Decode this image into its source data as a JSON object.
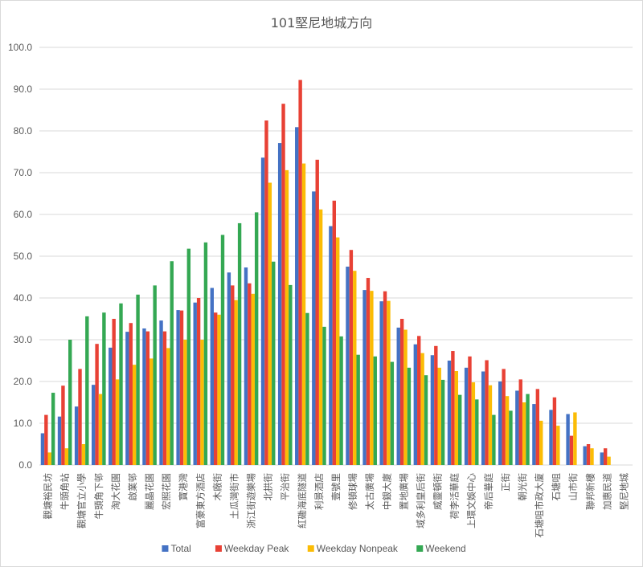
{
  "chart_data": {
    "type": "bar",
    "title": "101堅尼地城方向",
    "xlabel": "",
    "ylabel": "",
    "ylim": [
      0,
      100
    ],
    "ytick_step": 10,
    "grid": true,
    "legend_position": "bottom",
    "categories": [
      "觀塘裕民坊",
      "牛頭角站",
      "觀塘官立小學",
      "牛頭角下邨",
      "淘大花園",
      "啟業邨",
      "麗晶花園",
      "宏照花園",
      "寶港灣",
      "富豪東方酒店",
      "木廠街",
      "土瓜灣街市",
      "浙江街遊樂場",
      "北拱街",
      "平治街",
      "紅磡海底隧道",
      "利景酒店",
      "壹號里",
      "修頓球場",
      "太古廣場",
      "中銀大廈",
      "置地廣場",
      "域多利皇后街",
      "威靈頓街",
      "荷李活華庭",
      "上環文娛中心",
      "帝后華庭",
      "正街",
      "朝光街",
      "石塘咀市政大廈",
      "石塘咀",
      "山市街",
      "聯邦新樓",
      "加惠民道",
      "堅尼地城"
    ],
    "series": [
      {
        "name": "Total",
        "color": "#4472C4",
        "values": [
          7.6,
          11.6,
          14.0,
          19.2,
          28.1,
          31.9,
          32.7,
          34.6,
          37.1,
          38.9,
          42.4,
          46.1,
          47.3,
          73.6,
          77.1,
          80.9,
          65.5,
          57.2,
          47.5,
          41.9,
          39.2,
          32.9,
          28.9,
          26.3,
          25.0,
          23.3,
          22.4,
          20.0,
          17.8,
          14.6,
          13.2,
          12.2,
          4.5,
          3.0,
          0
        ]
      },
      {
        "name": "Weekday Peak",
        "color": "#E84135",
        "values": [
          12.0,
          19.0,
          23.0,
          29.0,
          35.0,
          34.0,
          32.0,
          32.0,
          37.0,
          40.0,
          36.5,
          43.0,
          43.5,
          82.5,
          86.5,
          92.2,
          73.1,
          63.3,
          51.5,
          44.8,
          41.6,
          35.0,
          30.9,
          28.5,
          27.3,
          26.0,
          25.1,
          23.0,
          20.5,
          18.2,
          16.2,
          7.0,
          5.0,
          4.0,
          0
        ]
      },
      {
        "name": "Weekday Nonpeak",
        "color": "#FBBC05",
        "values": [
          3.0,
          4.0,
          5.0,
          17.0,
          20.5,
          24.0,
          25.5,
          28.0,
          30.0,
          30.0,
          36.0,
          39.5,
          41.0,
          67.6,
          70.6,
          72.2,
          61.2,
          54.5,
          46.5,
          41.7,
          39.3,
          32.4,
          26.8,
          23.3,
          22.5,
          19.8,
          19.1,
          16.5,
          15.0,
          10.6,
          9.4,
          12.6,
          4.0,
          2.0,
          0
        ]
      },
      {
        "name": "Weekend",
        "color": "#34A853",
        "values": [
          17.3,
          30.0,
          35.6,
          36.5,
          38.7,
          40.8,
          43.0,
          48.8,
          51.8,
          53.3,
          55.1,
          57.9,
          60.5,
          48.7,
          43.1,
          36.4,
          33.1,
          30.8,
          26.4,
          26.0,
          24.7,
          23.3,
          21.5,
          20.4,
          16.8,
          15.7,
          12.0,
          13.0,
          17.0,
          0,
          0,
          0,
          0,
          0,
          0
        ]
      }
    ]
  }
}
